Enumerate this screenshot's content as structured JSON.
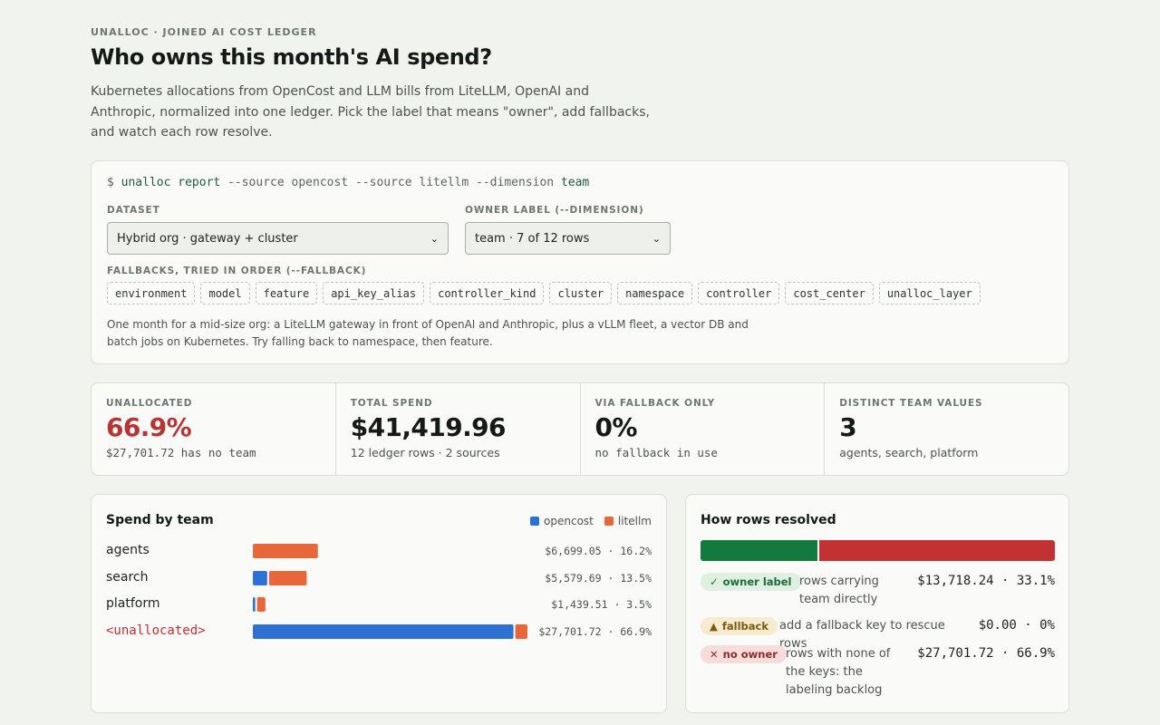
{
  "eyebrow": "UNALLOC · JOINED AI COST LEDGER",
  "title": "Who owns this month's AI spend?",
  "intro": "Kubernetes allocations from OpenCost and LLM bills from LiteLLM, OpenAI and Anthropic, normalized into one ledger. Pick the label that means \"owner\", add fallbacks, and watch each row resolve.",
  "command": {
    "prompt": "$",
    "bin": "unalloc",
    "sub": "report",
    "flags": "--source opencost --source litellm --dimension",
    "value": "team"
  },
  "controls": {
    "dataset_label": "DATASET",
    "dataset_value": "Hybrid org · gateway + cluster",
    "owner_label": "OWNER LABEL (--DIMENSION)",
    "owner_value": "team · 7 of 12 rows",
    "fallbacks_label": "FALLBACKS, TRIED IN ORDER (--FALLBACK)",
    "fallbacks": [
      "environment",
      "model",
      "feature",
      "api_key_alias",
      "controller_kind",
      "cluster",
      "namespace",
      "controller",
      "cost_center",
      "unalloc_layer"
    ],
    "description": "One month for a mid-size org: a LiteLLM gateway in front of OpenAI and Anthropic, plus a vLLM fleet, a vector DB and batch jobs on Kubernetes. Try falling back to namespace, then feature."
  },
  "stats": [
    {
      "label": "UNALLOCATED",
      "value": "66.9%",
      "sub": "$27,701.72 has no team",
      "emphasis": true,
      "mono_sub": true
    },
    {
      "label": "TOTAL SPEND",
      "value": "$41,419.96",
      "sub": "12 ledger rows · 2 sources",
      "emphasis": false,
      "mono_sub": false
    },
    {
      "label": "VIA FALLBACK ONLY",
      "value": "0%",
      "sub": "no fallback in use",
      "emphasis": false,
      "mono_sub": true
    },
    {
      "label": "DISTINCT TEAM VALUES",
      "value": "3",
      "sub": "agents, search, platform",
      "emphasis": false,
      "mono_sub": false
    }
  ],
  "chart_data": {
    "type": "bar",
    "stacked": true,
    "orientation": "horizontal",
    "title": "Spend by team",
    "legend": "top-right",
    "categories": [
      "agents",
      "search",
      "platform",
      "<unallocated>"
    ],
    "series": [
      {
        "name": "opencost",
        "color": "#2d72d2",
        "values": [
          0,
          1620,
          420,
          26300
        ]
      },
      {
        "name": "litellm",
        "color": "#e8673a",
        "values": [
          6699.05,
          3959.69,
          1019.51,
          1401.72
        ]
      }
    ],
    "value_labels": [
      "$6,699.05 · 16.2%",
      "$5,579.69 · 13.5%",
      "$1,439.51 · 3.5%",
      "$27,701.72 · 66.9%"
    ],
    "xlim": [
      0,
      27701.72
    ]
  },
  "resolution": {
    "title": "How rows resolved",
    "segments": [
      {
        "name": "owner label",
        "fraction": 0.331,
        "color": "#127a3c"
      },
      {
        "name": "fallback",
        "fraction": 0.0,
        "color": "#c9a227"
      },
      {
        "name": "no owner",
        "fraction": 0.669,
        "color": "#c23232"
      }
    ],
    "rows": [
      {
        "icon": "check-icon",
        "glyph": "✓",
        "pill": "owner label",
        "desc": "rows carrying team directly",
        "amount": "$13,718.24 · 33.1%"
      },
      {
        "icon": "triangle-icon",
        "glyph": "▲",
        "pill": "fallback",
        "desc": "add a fallback key to rescue rows",
        "amount": "$0.00 · 0%"
      },
      {
        "icon": "x-icon",
        "glyph": "✕",
        "pill": "no owner",
        "desc": "rows with none of the keys: the labeling backlog",
        "amount": "$27,701.72 · 66.9%"
      }
    ]
  }
}
